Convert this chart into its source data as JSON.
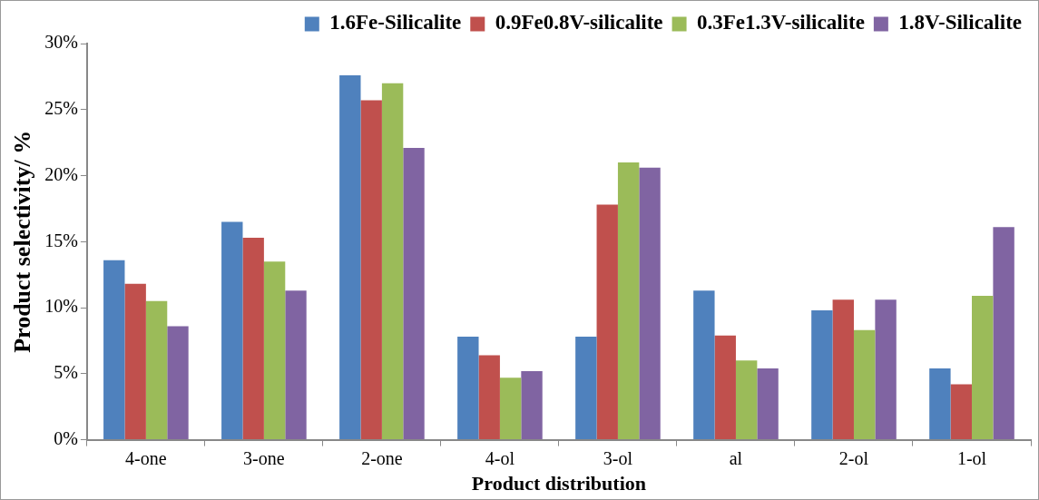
{
  "chart_data": {
    "type": "bar",
    "xlabel": "Product distribution",
    "ylabel": "Product selectivity/ %",
    "categories": [
      "4-one",
      "3-one",
      "2-one",
      "4-ol",
      "3-ol",
      "al",
      "2-ol",
      "1-ol"
    ],
    "series": [
      {
        "name": "1.6Fe-Silicalite",
        "color": "#4f81bd",
        "values": [
          13.6,
          16.5,
          27.6,
          7.8,
          7.8,
          11.3,
          9.8,
          5.4
        ]
      },
      {
        "name": "0.9Fe0.8V-silicalite",
        "color": "#c0504d",
        "values": [
          11.8,
          15.3,
          25.7,
          6.4,
          17.8,
          7.9,
          10.6,
          4.2
        ]
      },
      {
        "name": "0.3Fe1.3V-silicalite",
        "color": "#9bbb59",
        "values": [
          10.5,
          13.5,
          27.0,
          4.7,
          21.0,
          6.0,
          8.3,
          10.9
        ]
      },
      {
        "name": "1.8V-Silicalite",
        "color": "#8064a2",
        "values": [
          8.6,
          11.3,
          22.1,
          5.2,
          20.6,
          5.4,
          10.6,
          16.1
        ]
      }
    ],
    "ylim": [
      0,
      30
    ],
    "yticks": [
      {
        "value": 0,
        "label": "0%"
      },
      {
        "value": 5,
        "label": "5%"
      },
      {
        "value": 10,
        "label": "10%"
      },
      {
        "value": 15,
        "label": "15%"
      },
      {
        "value": 20,
        "label": "20%"
      },
      {
        "value": 25,
        "label": "25%"
      },
      {
        "value": 30,
        "label": "30%"
      }
    ],
    "grid": false,
    "legend": "top"
  }
}
